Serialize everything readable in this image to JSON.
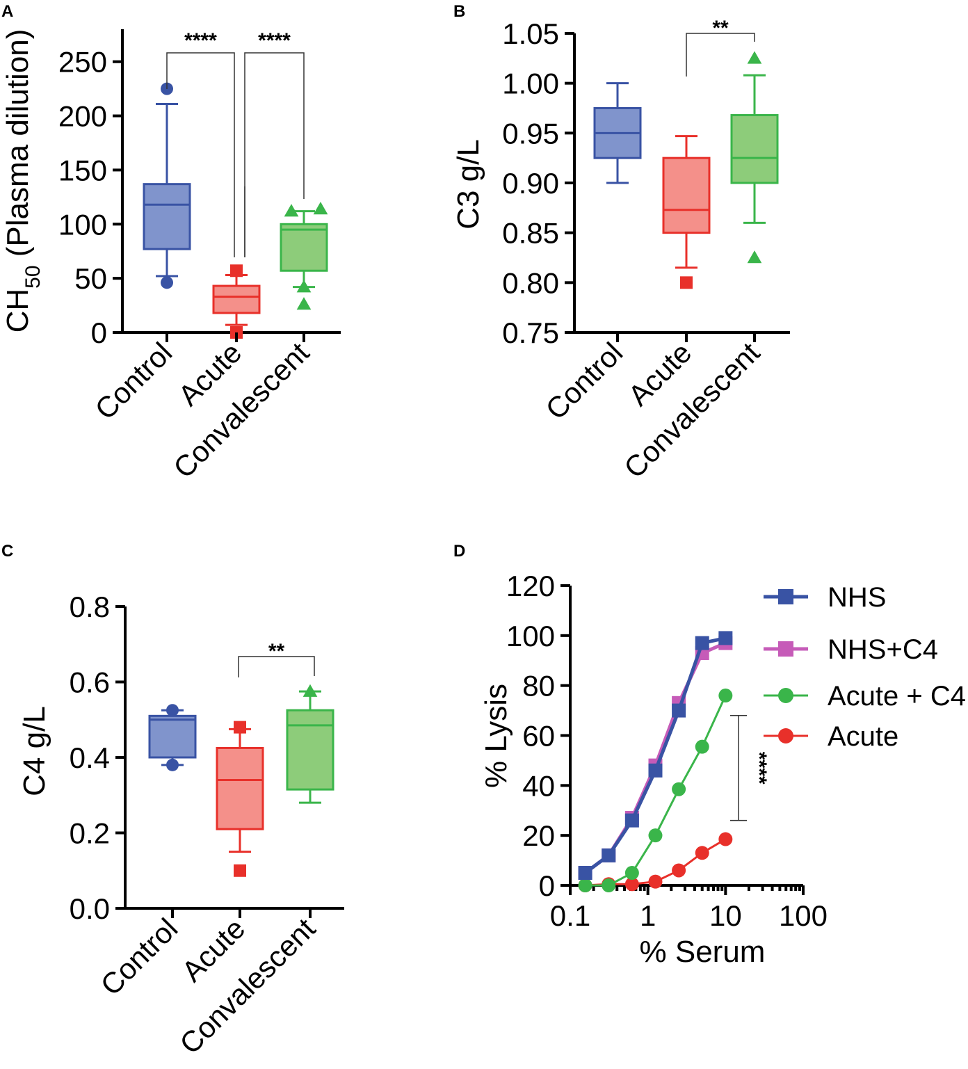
{
  "colors": {
    "control": "#3953a4",
    "control_fill": "#8094cc",
    "acute": "#e8302a",
    "acute_fill": "#f4908a",
    "convalescent": "#3ab54a",
    "convalescent_fill": "#8dcc7a",
    "nhs_c4": "#c65bb8"
  },
  "chart_data": [
    {
      "panel": "A",
      "type": "box",
      "ylabel_main": "CH",
      "ylabel_sub": "50",
      "ylabel_rest": " (Plasma dilution)",
      "ylim": [
        0,
        280
      ],
      "yticks": [
        0,
        50,
        100,
        150,
        200,
        250
      ],
      "ytick_labels": [
        "0",
        "50",
        "100",
        "150",
        "200",
        "250"
      ],
      "categories": [
        "Control",
        "Acute",
        "Convalescent"
      ],
      "boxes": [
        {
          "group": "Control",
          "q1": 77,
          "median": 118,
          "q3": 137,
          "whisker_low": 52,
          "whisker_high": 211,
          "outliers": [
            46,
            225
          ],
          "marker": "circle"
        },
        {
          "group": "Acute",
          "q1": 18,
          "median": 33,
          "q3": 43,
          "whisker_low": 7,
          "whisker_high": 53,
          "outliers": [
            0,
            57
          ],
          "marker": "square"
        },
        {
          "group": "Convalescent",
          "q1": 57,
          "median": 95,
          "q3": 100,
          "whisker_low": 42,
          "whisker_high": 112,
          "outliers": [
            26,
            42,
            112,
            114
          ],
          "marker": "triangle"
        }
      ],
      "annotations": [
        {
          "from": "Control",
          "to": "Acute",
          "text": "****"
        },
        {
          "from": "Acute",
          "to": "Convalescent",
          "text": "****"
        }
      ]
    },
    {
      "panel": "B",
      "type": "box",
      "ylabel_main": "C3 g/L",
      "ylim": [
        0.75,
        1.05
      ],
      "yticks": [
        0.75,
        0.8,
        0.85,
        0.9,
        0.95,
        1.0,
        1.05
      ],
      "ytick_labels": [
        "0.75",
        "0.80",
        "0.85",
        "0.90",
        "0.95",
        "1.00",
        "1.05"
      ],
      "categories": [
        "Control",
        "Acute",
        "Convalescent"
      ],
      "boxes": [
        {
          "group": "Control",
          "q1": 0.925,
          "median": 0.95,
          "q3": 0.975,
          "whisker_low": 0.9,
          "whisker_high": 1.0,
          "outliers": [],
          "marker": "circle"
        },
        {
          "group": "Acute",
          "q1": 0.85,
          "median": 0.873,
          "q3": 0.925,
          "whisker_low": 0.815,
          "whisker_high": 0.947,
          "outliers": [
            0.8
          ],
          "marker": "square"
        },
        {
          "group": "Convalescent",
          "q1": 0.9,
          "median": 0.925,
          "q3": 0.968,
          "whisker_low": 0.86,
          "whisker_high": 1.008,
          "outliers": [
            0.825,
            1.025
          ],
          "marker": "triangle"
        }
      ],
      "annotations": [
        {
          "from": "Acute",
          "to": "Convalescent",
          "text": "**"
        }
      ]
    },
    {
      "panel": "C",
      "type": "box",
      "ylabel_main": "C4 g/L",
      "ylim": [
        0,
        0.8
      ],
      "yticks": [
        0,
        0.2,
        0.4,
        0.6,
        0.8
      ],
      "ytick_labels": [
        "0.0",
        "0.2",
        "0.4",
        "0.6",
        "0.8"
      ],
      "categories": [
        "Control",
        "Acute",
        "Convalescent"
      ],
      "boxes": [
        {
          "group": "Control",
          "q1": 0.4,
          "median": 0.5,
          "q3": 0.51,
          "whisker_low": 0.38,
          "whisker_high": 0.525,
          "outliers": [
            0.38,
            0.525
          ],
          "marker": "circle"
        },
        {
          "group": "Acute",
          "q1": 0.21,
          "median": 0.34,
          "q3": 0.425,
          "whisker_low": 0.15,
          "whisker_high": 0.475,
          "outliers": [
            0.1,
            0.48
          ],
          "marker": "square"
        },
        {
          "group": "Convalescent",
          "q1": 0.315,
          "median": 0.485,
          "q3": 0.525,
          "whisker_low": 0.28,
          "whisker_high": 0.575,
          "outliers": [
            0.575
          ],
          "marker": "triangle"
        }
      ],
      "annotations": [
        {
          "from": "Acute",
          "to": "Convalescent",
          "text": "**"
        }
      ]
    },
    {
      "panel": "D",
      "type": "line",
      "xscale": "log",
      "xlabel": "% Serum",
      "ylabel": "% Lysis",
      "xlim": [
        0.1,
        100
      ],
      "ylim": [
        0,
        120
      ],
      "xticks": [
        0.1,
        1,
        10,
        100
      ],
      "xtick_labels": [
        "0.1",
        "1",
        "10",
        "100"
      ],
      "yticks": [
        0,
        20,
        40,
        60,
        80,
        100,
        120
      ],
      "ytick_labels": [
        "0",
        "20",
        "40",
        "60",
        "80",
        "100",
        "120"
      ],
      "x": [
        0.156,
        0.3125,
        0.625,
        1.25,
        2.5,
        5,
        10
      ],
      "series": [
        {
          "name": "NHS",
          "values": [
            5,
            12,
            26,
            46,
            70,
            97,
            99
          ],
          "color": "#3953a4",
          "marker": "square"
        },
        {
          "name": "NHS+C4",
          "values": [
            5,
            12,
            27,
            48,
            73,
            93,
            97
          ],
          "color": "#c65bb8",
          "marker": "square"
        },
        {
          "name": "Acute + C4",
          "values": [
            0,
            0,
            5,
            20,
            38.5,
            55.5,
            76
          ],
          "color": "#3ab54a",
          "marker": "circle"
        },
        {
          "name": "Acute",
          "values": [
            0,
            0.5,
            0.5,
            1.5,
            6,
            13,
            18.5
          ],
          "color": "#e8302a",
          "marker": "circle"
        }
      ],
      "annotations": [
        {
          "type": "bracket",
          "y_from": 26,
          "y_to": 68,
          "text": "****"
        }
      ]
    }
  ]
}
